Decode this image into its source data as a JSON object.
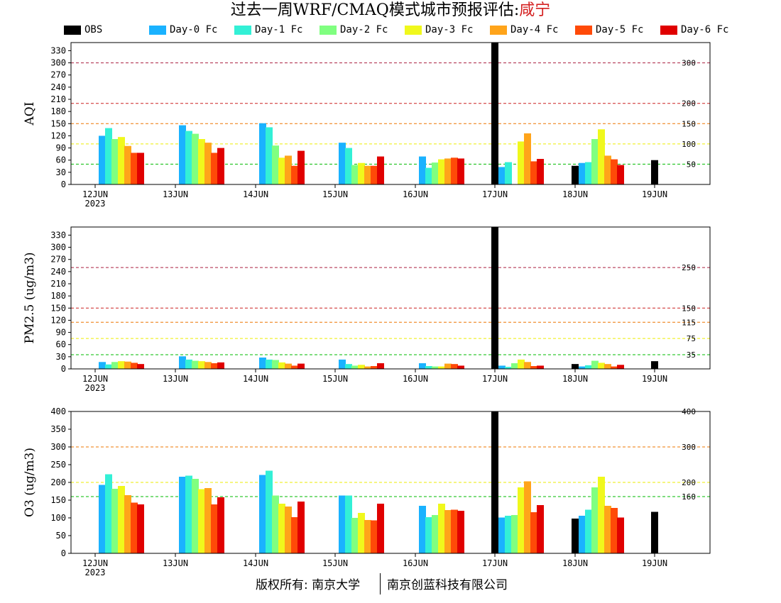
{
  "title": {
    "prefix": "过去一周WRF/CMAQ模式城市预报评估:",
    "city": "咸宁"
  },
  "legend": [
    {
      "name": "OBS",
      "color": "#000000"
    },
    {
      "name": "Day-0 Fc",
      "color": "#1ab2ff"
    },
    {
      "name": "Day-1 Fc",
      "color": "#33f0d6"
    },
    {
      "name": "Day-2 Fc",
      "color": "#80ff80"
    },
    {
      "name": "Day-3 Fc",
      "color": "#f0f81c"
    },
    {
      "name": "Day-4 Fc",
      "color": "#ffa41a"
    },
    {
      "name": "Day-5 Fc",
      "color": "#ff4a08"
    },
    {
      "name": "Day-6 Fc",
      "color": "#e00000"
    }
  ],
  "footer": {
    "left": "版权所有: 南京大学",
    "right": "南京创蓝科技有限公司"
  },
  "chart_data": [
    {
      "type": "bar",
      "ylabel": "AQI",
      "ylim": [
        0,
        350
      ],
      "yticks": [
        0,
        30,
        60,
        90,
        120,
        150,
        180,
        210,
        240,
        270,
        300,
        330
      ],
      "categories": [
        "12JUN",
        "13JUN",
        "14JUN",
        "15JUN",
        "16JUN",
        "17JUN",
        "18JUN",
        "19JUN"
      ],
      "first_category_sub": "2023",
      "thresholds": [
        {
          "value": 300,
          "label": "300",
          "color": "#aa2040"
        },
        {
          "value": 200,
          "label": "200",
          "color": "#cc2020"
        },
        {
          "value": 150,
          "label": "150",
          "color": "#ee7700"
        },
        {
          "value": 100,
          "label": "100",
          "color": "#eeee00"
        },
        {
          "value": 50,
          "label": "50",
          "color": "#00bb00"
        }
      ],
      "series": [
        {
          "name": "OBS",
          "values": [
            null,
            null,
            null,
            null,
            null,
            350,
            46,
            60
          ]
        },
        {
          "name": "Day-0 Fc",
          "values": [
            120,
            146,
            151,
            103,
            69,
            43,
            53,
            null
          ]
        },
        {
          "name": "Day-1 Fc",
          "values": [
            139,
            132,
            141,
            90,
            41,
            55,
            55,
            null
          ]
        },
        {
          "name": "Day-2 Fc",
          "values": [
            112,
            125,
            96,
            48,
            54,
            null,
            112,
            null
          ]
        },
        {
          "name": "Day-3 Fc",
          "values": [
            117,
            112,
            66,
            53,
            62,
            106,
            136,
            null
          ]
        },
        {
          "name": "Day-4 Fc",
          "values": [
            95,
            103,
            71,
            46,
            64,
            126,
            71,
            null
          ]
        },
        {
          "name": "Day-5 Fc",
          "values": [
            78,
            78,
            46,
            46,
            66,
            57,
            62,
            null
          ]
        },
        {
          "name": "Day-6 Fc",
          "values": [
            78,
            90,
            83,
            69,
            64,
            63,
            48,
            null
          ]
        }
      ]
    },
    {
      "type": "bar",
      "ylabel": "PM2.5 (ug/m3)",
      "ylim": [
        0,
        350
      ],
      "yticks": [
        0,
        30,
        60,
        90,
        120,
        150,
        180,
        210,
        240,
        270,
        300,
        330
      ],
      "categories": [
        "12JUN",
        "13JUN",
        "14JUN",
        "15JUN",
        "16JUN",
        "17JUN",
        "18JUN",
        "19JUN"
      ],
      "first_category_sub": "2023",
      "thresholds": [
        {
          "value": 250,
          "label": "250",
          "color": "#aa2040"
        },
        {
          "value": 150,
          "label": "150",
          "color": "#cc2020"
        },
        {
          "value": 115,
          "label": "115",
          "color": "#ee7700"
        },
        {
          "value": 75,
          "label": "75",
          "color": "#eeee00"
        },
        {
          "value": 35,
          "label": "35",
          "color": "#00bb00"
        }
      ],
      "series": [
        {
          "name": "OBS",
          "values": [
            null,
            null,
            null,
            null,
            null,
            350,
            12,
            19
          ]
        },
        {
          "name": "Day-0 Fc",
          "values": [
            17,
            31,
            28,
            23,
            14,
            8,
            6,
            null
          ]
        },
        {
          "name": "Day-1 Fc",
          "values": [
            11,
            23,
            23,
            12,
            7,
            5,
            9,
            null
          ]
        },
        {
          "name": "Day-2 Fc",
          "values": [
            17,
            20,
            22,
            8,
            6,
            14,
            20,
            null
          ]
        },
        {
          "name": "Day-3 Fc",
          "values": [
            19,
            19,
            16,
            10,
            6,
            23,
            15,
            null
          ]
        },
        {
          "name": "Day-4 Fc",
          "values": [
            18,
            17,
            13,
            6,
            13,
            17,
            12,
            null
          ]
        },
        {
          "name": "Day-5 Fc",
          "values": [
            15,
            14,
            8,
            7,
            12,
            7,
            6,
            null
          ]
        },
        {
          "name": "Day-6 Fc",
          "values": [
            12,
            16,
            13,
            14,
            8,
            8,
            10,
            null
          ]
        }
      ]
    },
    {
      "type": "bar",
      "ylabel": "O3 (ug/m3)",
      "ylim": [
        0,
        400
      ],
      "yticks": [
        0,
        50,
        100,
        150,
        200,
        250,
        300,
        350,
        400
      ],
      "categories": [
        "12JUN",
        "13JUN",
        "14JUN",
        "15JUN",
        "16JUN",
        "17JUN",
        "18JUN",
        "19JUN"
      ],
      "first_category_sub": "2023",
      "thresholds": [
        {
          "value": 400,
          "label": "400",
          "color": "#cc2020"
        },
        {
          "value": 300,
          "label": "300",
          "color": "#ee7700"
        },
        {
          "value": 200,
          "label": "200",
          "color": "#eeee00"
        },
        {
          "value": 160,
          "label": "160",
          "color": "#00bb00"
        }
      ],
      "series": [
        {
          "name": "OBS",
          "values": [
            null,
            null,
            null,
            null,
            null,
            400,
            98,
            117
          ]
        },
        {
          "name": "Day-0 Fc",
          "values": [
            193,
            216,
            221,
            163,
            134,
            101,
            106,
            null
          ]
        },
        {
          "name": "Day-1 Fc",
          "values": [
            223,
            219,
            233,
            163,
            102,
            106,
            123,
            null
          ]
        },
        {
          "name": "Day-2 Fc",
          "values": [
            182,
            210,
            163,
            100,
            108,
            108,
            186,
            null
          ]
        },
        {
          "name": "Day-3 Fc",
          "values": [
            190,
            181,
            140,
            114,
            140,
            186,
            216,
            null
          ]
        },
        {
          "name": "Day-4 Fc",
          "values": [
            164,
            184,
            132,
            94,
            122,
            203,
            134,
            null
          ]
        },
        {
          "name": "Day-5 Fc",
          "values": [
            143,
            138,
            102,
            93,
            123,
            116,
            128,
            null
          ]
        },
        {
          "name": "Day-6 Fc",
          "values": [
            138,
            158,
            146,
            140,
            120,
            136,
            101,
            null
          ]
        }
      ]
    }
  ]
}
